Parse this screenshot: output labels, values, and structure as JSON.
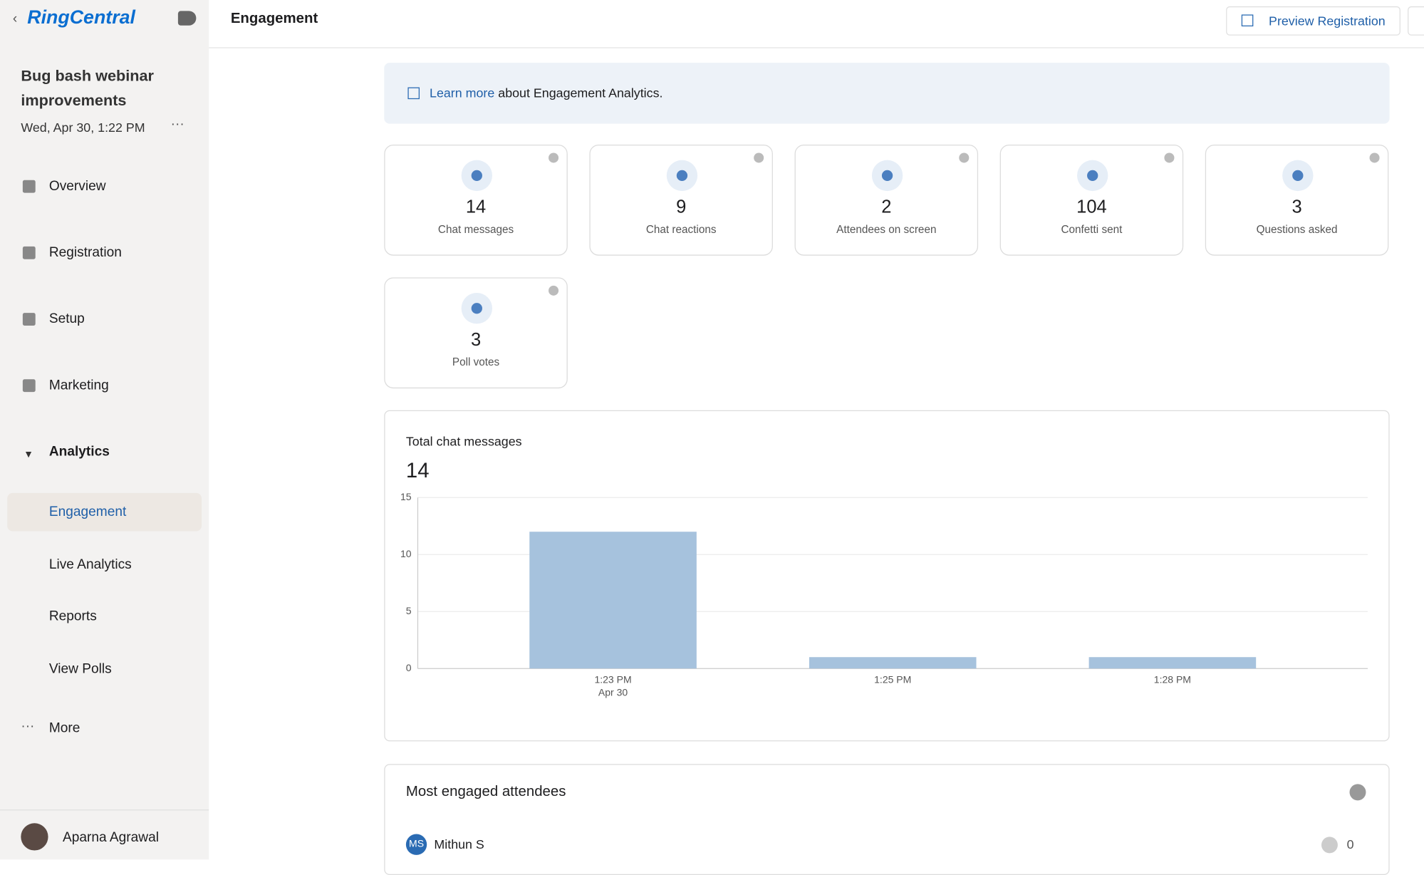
{
  "header": {
    "logo": "RingCentral",
    "title": "Engagement",
    "preview_button": "Preview Registration"
  },
  "sidebar": {
    "event_title": "Bug bash webinar improvements",
    "event_date": "Wed, Apr 30, 1:22 PM",
    "nav": [
      "Overview",
      "Registration",
      "Setup",
      "Marketing",
      "Analytics"
    ],
    "analytics_sub": [
      "Engagement",
      "Live Analytics",
      "Reports",
      "View Polls"
    ],
    "more": "More",
    "user": "Aparna Agrawal"
  },
  "banner": {
    "link": "Learn more",
    "text": "about Engagement Analytics."
  },
  "metrics": [
    {
      "value": "14",
      "label": "Chat messages"
    },
    {
      "value": "9",
      "label": "Chat reactions"
    },
    {
      "value": "2",
      "label": "Attendees on screen"
    },
    {
      "value": "104",
      "label": "Confetti sent"
    },
    {
      "value": "3",
      "label": "Questions asked"
    },
    {
      "value": "3",
      "label": "Poll votes"
    }
  ],
  "chart_data": {
    "type": "bar",
    "title": "Total chat messages",
    "total": "14",
    "categories": [
      [
        "1:23 PM",
        "Apr 30"
      ],
      [
        "1:25 PM"
      ],
      [
        "1:28 PM"
      ]
    ],
    "values": [
      12,
      1,
      1
    ],
    "color": "#a6c2dd",
    "ylim": [
      0,
      15
    ],
    "yticks": [
      0,
      5,
      10,
      15
    ],
    "grid": true
  },
  "attendees": {
    "title": "Most engaged attendees",
    "rows": [
      {
        "initials": "MS",
        "name": "Mithun S",
        "count": "0"
      }
    ]
  }
}
